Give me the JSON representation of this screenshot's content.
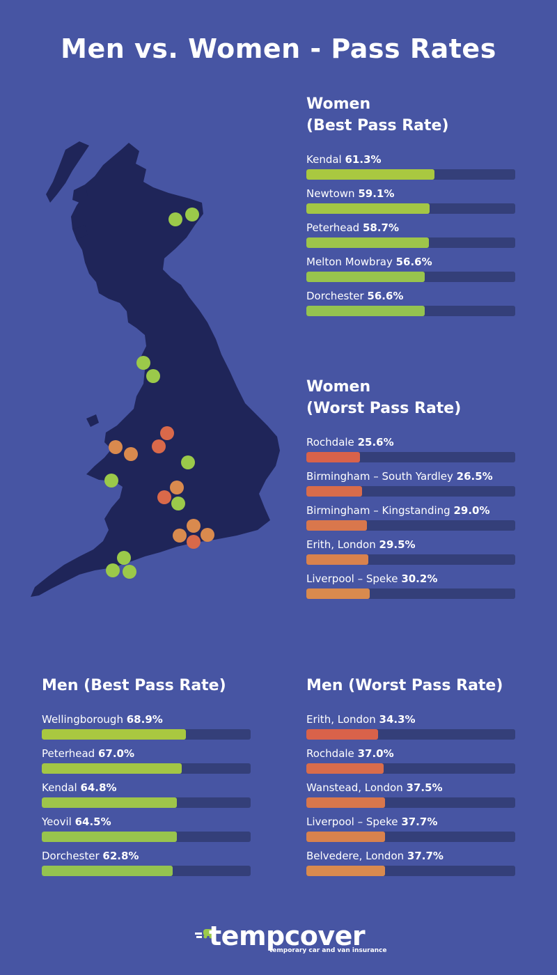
{
  "title": "Men vs. Women - Pass Rates",
  "colors": {
    "background": "#4755a3",
    "track": "#343f79",
    "map": "#1f2559",
    "best_green": "#9bc94a",
    "yellow_green": "#a9c840",
    "worst_red": "#d9694a",
    "worst_orange": "#d98a4e"
  },
  "chart_data": [
    {
      "type": "bar",
      "title": "Women\n(Best Pass Rate)",
      "title_lines": [
        "Women",
        "(Best Pass Rate)"
      ],
      "ylim": [
        0,
        100
      ],
      "categories": [
        "Kendal",
        "Newtown",
        "Peterhead",
        "Melton Mowbray",
        "Dorchester"
      ],
      "values": [
        61.3,
        59.1,
        58.7,
        56.6,
        56.6
      ],
      "labels": [
        "61.3%",
        "59.1%",
        "58.7%",
        "56.6%",
        "56.6%"
      ],
      "colors": [
        "#a9c840",
        "#a3c645",
        "#9ec54a",
        "#98c44d",
        "#94c350"
      ]
    },
    {
      "type": "bar",
      "title": "Women\n(Worst Pass Rate)",
      "title_lines": [
        "Women",
        "(Worst Pass Rate)"
      ],
      "ylim": [
        0,
        100
      ],
      "categories": [
        "Rochdale",
        "Birmingham – South Yardley",
        "Birmingham – Kingstanding",
        "Erith, London",
        "Liverpool – Speke"
      ],
      "values": [
        25.6,
        26.5,
        29.0,
        29.5,
        30.2
      ],
      "labels": [
        "25.6%",
        "26.5%",
        "29.0%",
        "29.5%",
        "30.2%"
      ],
      "colors": [
        "#d9624a",
        "#d96c4b",
        "#d9774c",
        "#d9824d",
        "#d98a4e"
      ]
    },
    {
      "type": "bar",
      "title": "Men (Best Pass Rate)",
      "title_lines": [
        "Men (Best Pass Rate)"
      ],
      "ylim": [
        0,
        100
      ],
      "categories": [
        "Wellingborough",
        "Peterhead",
        "Kendal",
        "Yeovil",
        "Dorchester"
      ],
      "values": [
        68.9,
        67.0,
        64.8,
        64.5,
        62.8
      ],
      "labels": [
        "68.9%",
        "67.0%",
        "64.8%",
        "64.5%",
        "62.8%"
      ],
      "colors": [
        "#a9c840",
        "#a3c645",
        "#9ec54a",
        "#98c44d",
        "#94c350"
      ]
    },
    {
      "type": "bar",
      "title": "Men (Worst Pass Rate)",
      "title_lines": [
        "Men (Worst Pass Rate)"
      ],
      "ylim": [
        0,
        100
      ],
      "categories": [
        "Erith, London",
        "Rochdale",
        "Wanstead, London",
        "Liverpool – Speke",
        "Belvedere, London"
      ],
      "values": [
        34.3,
        37.0,
        37.5,
        37.7,
        37.7
      ],
      "labels": [
        "34.3%",
        "37.0%",
        "37.5%",
        "37.7%",
        "37.7%"
      ],
      "colors": [
        "#d9624a",
        "#d96c4b",
        "#d9774c",
        "#d9824d",
        "#d98a4e"
      ]
    }
  ],
  "map": {
    "name": "uk-map",
    "marker_colors": [
      "#9bc94a",
      "#d9694a",
      "#d98a4e"
    ]
  },
  "logo": {
    "wordmark": "tempcover",
    "tagline": "temporary car and van insurance"
  }
}
